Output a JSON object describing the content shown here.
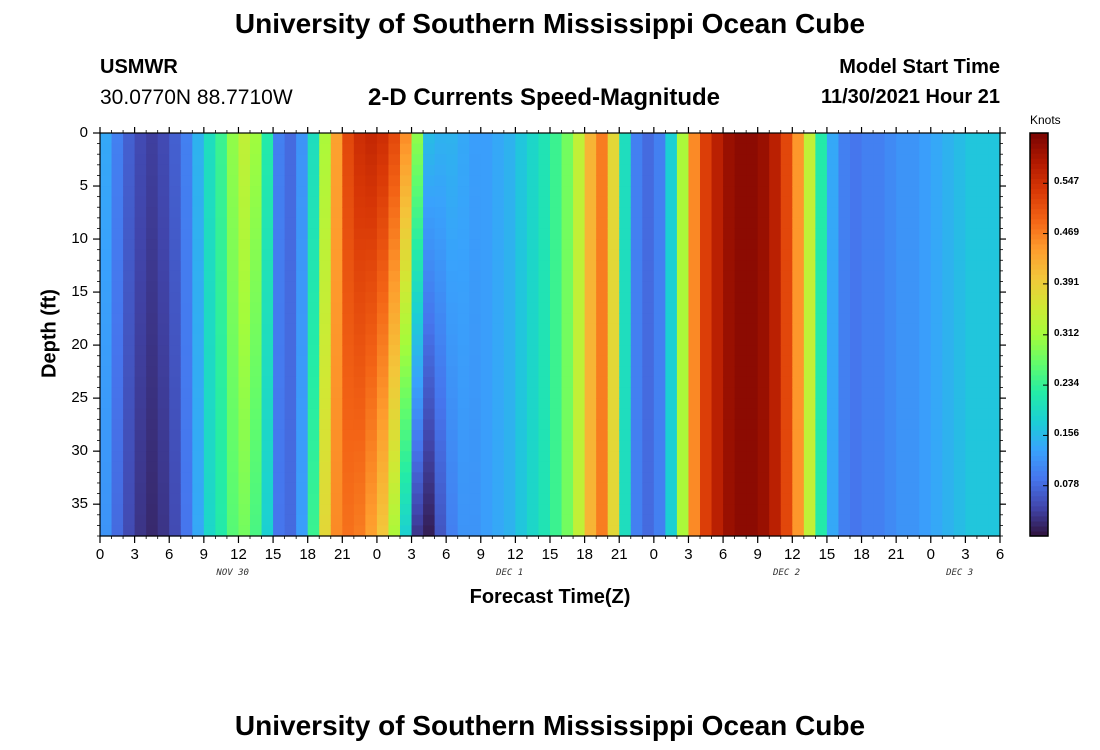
{
  "header": {
    "title": "University of Southern Mississippi Ocean Cube",
    "station": "USMWR",
    "coordinates": "30.0770N  88.7710W",
    "model_start_label": "Model Start Time",
    "model_start_value": "11/30/2021 Hour 21"
  },
  "footer": {
    "title": "University of Southern Mississippi Ocean Cube"
  },
  "colors": {
    "colormap": [
      "#30123b",
      "#4145ab",
      "#4675ed",
      "#39a2fc",
      "#1bcfd4",
      "#24eca6",
      "#61fc6c",
      "#a4fc3b",
      "#d1e834",
      "#f3c63a",
      "#fe9b2d",
      "#f36315",
      "#d93806",
      "#b11901",
      "#7a0402"
    ]
  },
  "chart_data": {
    "type": "heatmap",
    "title": "2-D Currents Speed-Magnitude",
    "xlabel": "Forecast Time(Z)",
    "ylabel": "Depth (ft)",
    "colorbar_label": "Knots",
    "colorbar_ticks": [
      "0.547",
      "0.469",
      "0.391",
      "0.312",
      "0.234",
      "0.156",
      "0.078"
    ],
    "colorbar_tick_values": [
      0.547,
      0.469,
      0.391,
      0.312,
      0.234,
      0.156,
      0.078
    ],
    "value_range": [
      0.0,
      0.625
    ],
    "x_range_hours": [
      0,
      78
    ],
    "x_tick_hours": [
      0,
      3,
      6,
      9,
      12,
      15,
      18,
      21,
      24,
      27,
      30,
      33,
      36,
      39,
      42,
      45,
      48,
      51,
      54,
      57,
      60,
      63,
      66,
      69,
      72,
      75,
      78
    ],
    "x_tick_labels": [
      "0",
      "3",
      "6",
      "9",
      "12",
      "15",
      "18",
      "21",
      "0",
      "3",
      "6",
      "9",
      "12",
      "15",
      "18",
      "21",
      "0",
      "3",
      "6",
      "9",
      "12",
      "15",
      "18",
      "21",
      "0",
      "3",
      "6"
    ],
    "date_labels": [
      {
        "text": "NOV 30",
        "hour": 11.5
      },
      {
        "text": "DEC 1",
        "hour": 35.5
      },
      {
        "text": "DEC 2",
        "hour": 59.5
      },
      {
        "text": "DEC 3",
        "hour": 74.5
      }
    ],
    "y_range_ft": [
      0,
      38
    ],
    "y_ticks": [
      0,
      5,
      10,
      15,
      20,
      25,
      30,
      35
    ],
    "y_tick_labels": [
      "0",
      "5",
      "10",
      "15",
      "20",
      "25",
      "30",
      "35"
    ],
    "time_profile_knots": {
      "hours": [
        0,
        1,
        2,
        3,
        4,
        5,
        6,
        7,
        8,
        9,
        10,
        11,
        12,
        13,
        14,
        15,
        16,
        17,
        18,
        19,
        20,
        21,
        22,
        23,
        24,
        25,
        26,
        27,
        28,
        29,
        30,
        31,
        32,
        33,
        34,
        35,
        36,
        37,
        38,
        39,
        40,
        41,
        42,
        43,
        44,
        45,
        46,
        47,
        48,
        49,
        50,
        51,
        52,
        53,
        54,
        55,
        56,
        57,
        58,
        59,
        60,
        61,
        62,
        63,
        64,
        65,
        66,
        67,
        68,
        69,
        70,
        71,
        72,
        73,
        74,
        75,
        76,
        77,
        78
      ],
      "surface": [
        0.14,
        0.1,
        0.07,
        0.05,
        0.04,
        0.05,
        0.07,
        0.1,
        0.15,
        0.2,
        0.24,
        0.3,
        0.34,
        0.31,
        0.22,
        0.1,
        0.08,
        0.12,
        0.2,
        0.32,
        0.44,
        0.52,
        0.55,
        0.56,
        0.55,
        0.52,
        0.46,
        0.3,
        0.16,
        0.15,
        0.15,
        0.14,
        0.13,
        0.13,
        0.14,
        0.15,
        0.17,
        0.19,
        0.21,
        0.24,
        0.28,
        0.34,
        0.42,
        0.47,
        0.38,
        0.2,
        0.1,
        0.08,
        0.1,
        0.18,
        0.32,
        0.46,
        0.53,
        0.57,
        0.6,
        0.61,
        0.61,
        0.6,
        0.57,
        0.52,
        0.45,
        0.34,
        0.22,
        0.14,
        0.1,
        0.09,
        0.1,
        0.1,
        0.11,
        0.12,
        0.12,
        0.13,
        0.14,
        0.15,
        0.16,
        0.17,
        0.17,
        0.17,
        0.17
      ],
      "bottom": [
        0.12,
        0.08,
        0.05,
        0.03,
        0.02,
        0.03,
        0.05,
        0.09,
        0.14,
        0.19,
        0.22,
        0.26,
        0.28,
        0.25,
        0.18,
        0.09,
        0.08,
        0.13,
        0.24,
        0.38,
        0.46,
        0.48,
        0.47,
        0.44,
        0.4,
        0.32,
        0.18,
        0.03,
        0.01,
        0.06,
        0.1,
        0.12,
        0.12,
        0.13,
        0.14,
        0.15,
        0.17,
        0.19,
        0.21,
        0.24,
        0.28,
        0.34,
        0.42,
        0.47,
        0.38,
        0.2,
        0.1,
        0.08,
        0.1,
        0.18,
        0.32,
        0.46,
        0.53,
        0.57,
        0.6,
        0.61,
        0.61,
        0.6,
        0.57,
        0.52,
        0.45,
        0.34,
        0.22,
        0.14,
        0.1,
        0.09,
        0.1,
        0.1,
        0.11,
        0.12,
        0.12,
        0.13,
        0.14,
        0.15,
        0.16,
        0.17,
        0.17,
        0.17,
        0.17
      ]
    }
  }
}
